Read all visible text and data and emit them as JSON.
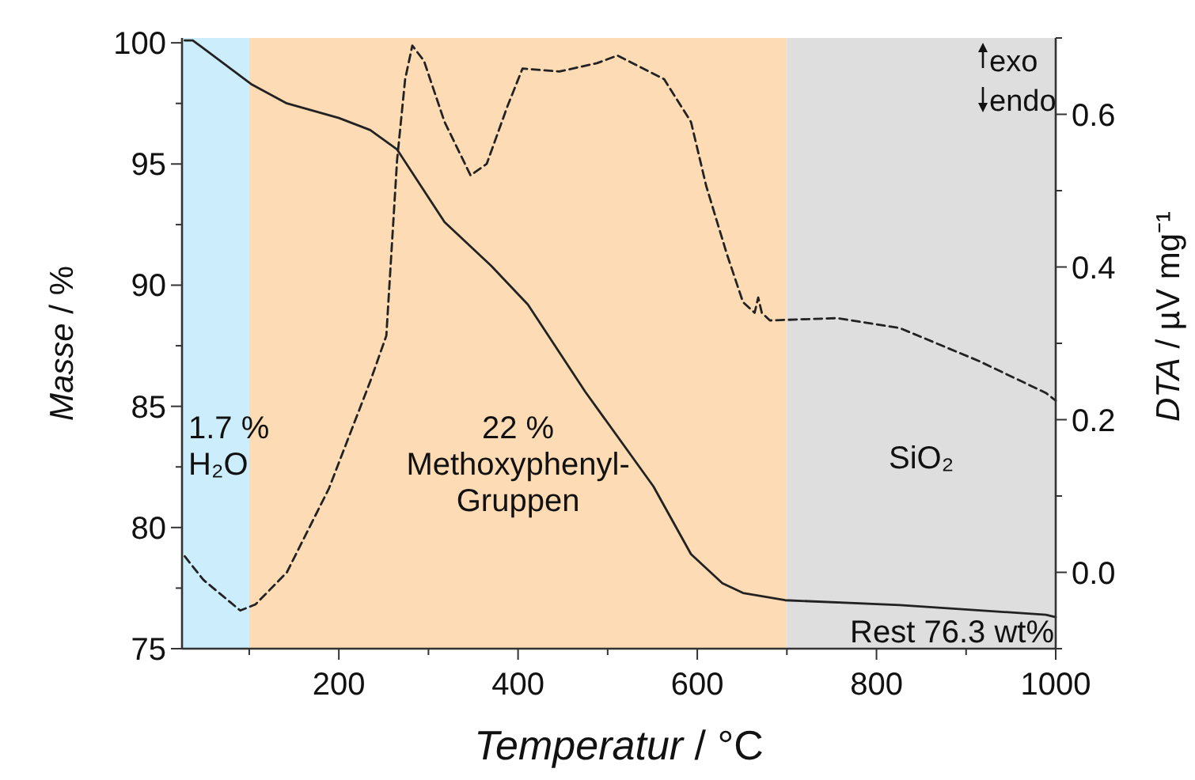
{
  "chart_data": {
    "type": "line",
    "xlabel": "Temperatur / °C",
    "ylabel": "Masse / %",
    "y2label": "DTA / µV mg⁻¹",
    "xlim": [
      25,
      1000
    ],
    "ylim": [
      75,
      100.2
    ],
    "y2lim": [
      -0.1,
      0.7
    ],
    "xticks": [
      {
        "value": 100,
        "label": null
      },
      200,
      {
        "value": 300,
        "label": null
      },
      400,
      {
        "value": 500,
        "label": null
      },
      600,
      {
        "value": 700,
        "label": null
      },
      800,
      {
        "value": 900,
        "label": null
      },
      1000
    ],
    "yticks": [
      75,
      {
        "value": 77.5,
        "label": null
      },
      80,
      {
        "value": 82.5,
        "label": null
      },
      85,
      {
        "value": 87.5,
        "label": null
      },
      90,
      {
        "value": 92.5,
        "label": null
      },
      95,
      {
        "value": 97.5,
        "label": null
      },
      100
    ],
    "y2ticks": [
      {
        "value": -0.1,
        "label": null
      },
      {
        "value": 0,
        "label": "0.0"
      },
      {
        "value": 0.1,
        "label": null
      },
      {
        "value": 0.2,
        "label": "0.2"
      },
      {
        "value": 0.3,
        "label": null
      },
      {
        "value": 0.4,
        "label": "0.4"
      },
      {
        "value": 0.5,
        "label": null
      },
      {
        "value": 0.6,
        "label": "0.6"
      },
      {
        "value": 0.7,
        "label": null
      }
    ],
    "grid": false,
    "series": [
      {
        "color": "#222222",
        "line_style": "solid",
        "x": [
          28,
          37,
          102,
          142,
          200,
          235,
          265,
          318,
          370,
          411,
          475,
          551,
          593,
          628,
          651,
          698,
          826,
          989,
          1000
        ],
        "values": [
          100.1,
          100.1,
          98.3,
          97.5,
          96.9,
          96.4,
          95.6,
          92.6,
          90.8,
          89.2,
          85.6,
          81.7,
          78.9,
          77.7,
          77.3,
          77.0,
          76.8,
          76.4,
          76.3
        ]
      },
      {
        "color": "#222222",
        "line_style": "dashed",
        "axis": "y2",
        "x": [
          28,
          49,
          90,
          107,
          142,
          189,
          235,
          253,
          265,
          274,
          282,
          295,
          318,
          347,
          365,
          388,
          405,
          446,
          488,
          511,
          563,
          593,
          610,
          633,
          651,
          664,
          668,
          672,
          681,
          756,
          826,
          914,
          989,
          1000
        ],
        "values": [
          0.021,
          -0.01,
          -0.05,
          -0.042,
          0.0,
          0.11,
          0.25,
          0.31,
          0.54,
          0.646,
          0.69,
          0.67,
          0.59,
          0.52,
          0.535,
          0.61,
          0.66,
          0.656,
          0.667,
          0.677,
          0.646,
          0.59,
          0.506,
          0.417,
          0.354,
          0.34,
          0.36,
          0.34,
          0.33,
          0.333,
          0.32,
          0.277,
          0.235,
          0.225
        ]
      }
    ],
    "bands": [
      {
        "axis": "x",
        "from": 25,
        "to": 100,
        "color": "#ccedfb",
        "label": "1.7 %\nH₂O"
      },
      {
        "axis": "x",
        "from": 100,
        "to": 700,
        "color": "#fddbb4",
        "label": "22 %\nMethoxyphenyl-\nGruppen"
      },
      {
        "axis": "x",
        "from": 700,
        "to": 1000,
        "color": "#dedede",
        "label": "SiO₂"
      }
    ],
    "annotations": [
      "exo",
      "endo",
      "Rest 76.3 wt%"
    ]
  }
}
